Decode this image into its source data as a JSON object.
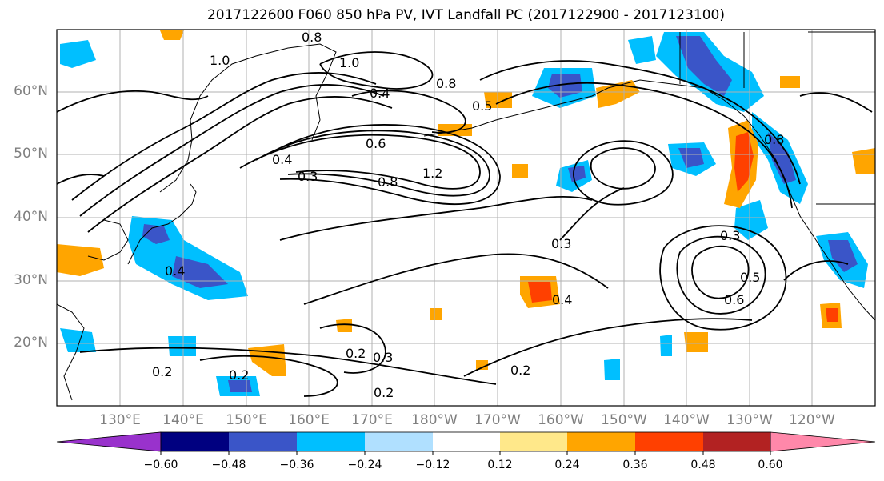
{
  "title": "2017122600 F060 850 hPa PV, IVT Landfall PC (2017122900 - 2017123100)",
  "map": {
    "lat_labels": [
      "60°N",
      "50°N",
      "40°N",
      "30°N",
      "20°N"
    ],
    "lon_labels": [
      "130°E",
      "140°E",
      "150°E",
      "160°E",
      "170°E",
      "180°W",
      "170°W",
      "160°W",
      "150°W",
      "140°W",
      "130°W",
      "120°W"
    ],
    "contour_labels": [
      "1.0",
      "1.0",
      "0.8",
      "0.8",
      "0.4",
      "0.5",
      "0.6",
      "0.8",
      "1.2",
      "0.3",
      "0.4",
      "0.4",
      "0.3",
      "0.4",
      "0.5",
      "0.6",
      "0.2",
      "0.2",
      "0.2",
      "0.2",
      "0.3",
      "0.2",
      "0.3",
      "0.8"
    ]
  },
  "colorbar": {
    "tick_labels": [
      "−0.60",
      "−0.48",
      "−0.36",
      "−0.24",
      "−0.12",
      "0.12",
      "0.24",
      "0.36",
      "0.48",
      "0.60"
    ],
    "colors": [
      "#9932cc",
      "#000080",
      "#3a55c8",
      "#00bfff",
      "#b0e0ff",
      "#ffffff",
      "#ffe88a",
      "#ffa500",
      "#ff4000",
      "#b22222",
      "#ff88aa"
    ]
  },
  "colors": {
    "neg_strong": "#3a55c8",
    "neg_mid": "#00bfff",
    "neg_light": "#b0e0ff",
    "pos_light": "#ffe88a",
    "pos_mid": "#ffa500",
    "pos_strong": "#ff4000"
  }
}
